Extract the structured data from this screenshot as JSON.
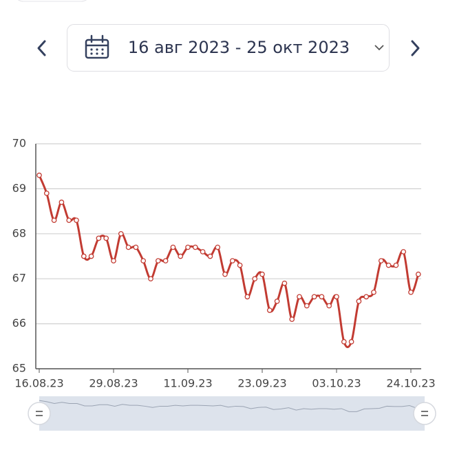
{
  "header": {
    "date_range": "16 авг 2023 - 25 окт 2023"
  },
  "chart_data": {
    "type": "line",
    "categories": [
      "16.08.23",
      null,
      null,
      null,
      null,
      null,
      null,
      null,
      null,
      null,
      "29.08.23",
      null,
      null,
      null,
      null,
      null,
      null,
      null,
      null,
      null,
      "11.09.23",
      null,
      null,
      null,
      null,
      null,
      null,
      null,
      null,
      null,
      "23.09.23",
      null,
      null,
      null,
      null,
      null,
      null,
      null,
      null,
      null,
      "03.10.23",
      null,
      null,
      null,
      null,
      null,
      null,
      null,
      null,
      null,
      "24.10.23",
      null
    ],
    "series": [
      {
        "color": "#c23b32",
        "values": [
          69.3,
          68.9,
          68.3,
          68.7,
          68.3,
          68.3,
          67.5,
          67.5,
          67.9,
          67.9,
          67.4,
          68.0,
          67.7,
          67.7,
          67.4,
          67.0,
          67.4,
          67.4,
          67.7,
          67.5,
          67.7,
          67.7,
          67.6,
          67.5,
          67.7,
          67.1,
          67.4,
          67.3,
          66.6,
          67.0,
          67.1,
          66.3,
          66.5,
          66.9,
          66.1,
          66.6,
          66.4,
          66.6,
          66.6,
          66.4,
          66.6,
          65.6,
          65.6,
          66.5,
          66.6,
          66.7,
          67.4,
          67.3,
          67.3,
          67.6,
          66.7,
          67.1
        ]
      }
    ],
    "ylim": [
      65,
      70
    ],
    "yticks": [
      65,
      66,
      67,
      68,
      69,
      70
    ],
    "grid": true
  }
}
